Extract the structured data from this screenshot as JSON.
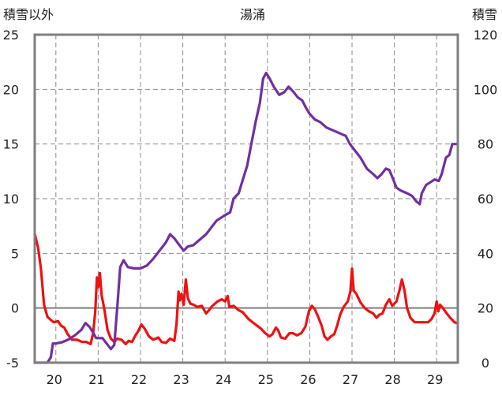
{
  "chart_data": {
    "type": "line",
    "title": "湯涌",
    "y_left_label": "積雪以外",
    "y_right_label": "積雪",
    "x_ticks": [
      "20",
      "21",
      "22",
      "23",
      "24",
      "25",
      "26",
      "27",
      "28",
      "29"
    ],
    "x_range": [
      19.5,
      29.5
    ],
    "y_left": {
      "ticks": [
        "-5",
        "0",
        "5",
        "10",
        "15",
        "20",
        "25"
      ],
      "range": [
        -5,
        25
      ]
    },
    "y_right": {
      "ticks": [
        "0",
        "20",
        "40",
        "60",
        "80",
        "100",
        "120"
      ],
      "range": [
        0,
        120
      ]
    },
    "grid": "dashed vertical at each tick, dashed horizontal at each left tick, solid line at 0",
    "series": [
      {
        "color": "#ee1111",
        "axis": "left",
        "points": [
          [
            19.5,
            6.8
          ],
          [
            19.58,
            5.5
          ],
          [
            19.65,
            3.5
          ],
          [
            19.72,
            0.3
          ],
          [
            19.8,
            -0.8
          ],
          [
            19.88,
            -1.1
          ],
          [
            19.95,
            -1.3
          ],
          [
            20.05,
            -1.2
          ],
          [
            20.12,
            -1.6
          ],
          [
            20.2,
            -1.8
          ],
          [
            20.28,
            -2.4
          ],
          [
            20.38,
            -2.9
          ],
          [
            20.5,
            -2.9
          ],
          [
            20.62,
            -3.1
          ],
          [
            20.72,
            -3.1
          ],
          [
            20.82,
            -3.3
          ],
          [
            20.88,
            -2.3
          ],
          [
            20.93,
            -0.4
          ],
          [
            20.97,
            2.8
          ],
          [
            21.0,
            1.9
          ],
          [
            21.04,
            3.2
          ],
          [
            21.08,
            1.2
          ],
          [
            21.15,
            -0.2
          ],
          [
            21.22,
            -2.0
          ],
          [
            21.3,
            -2.8
          ],
          [
            21.38,
            -3.1
          ],
          [
            21.45,
            -2.8
          ],
          [
            21.55,
            -2.9
          ],
          [
            21.65,
            -3.3
          ],
          [
            21.72,
            -3.0
          ],
          [
            21.8,
            -3.1
          ],
          [
            21.88,
            -2.5
          ],
          [
            21.95,
            -2.1
          ],
          [
            22.02,
            -1.5
          ],
          [
            22.1,
            -1.9
          ],
          [
            22.2,
            -2.6
          ],
          [
            22.3,
            -2.9
          ],
          [
            22.42,
            -2.7
          ],
          [
            22.5,
            -3.1
          ],
          [
            22.6,
            -3.2
          ],
          [
            22.7,
            -2.8
          ],
          [
            22.8,
            -3.0
          ],
          [
            22.85,
            -1.5
          ],
          [
            22.9,
            1.5
          ],
          [
            22.93,
            0.7
          ],
          [
            22.97,
            1.3
          ],
          [
            23.02,
            0.3
          ],
          [
            23.07,
            2.6
          ],
          [
            23.12,
            0.9
          ],
          [
            23.18,
            0.4
          ],
          [
            23.25,
            0.3
          ],
          [
            23.35,
            0.1
          ],
          [
            23.45,
            0.2
          ],
          [
            23.55,
            -0.5
          ],
          [
            23.62,
            -0.2
          ],
          [
            23.7,
            0.2
          ],
          [
            23.82,
            0.6
          ],
          [
            23.92,
            0.8
          ],
          [
            24.0,
            0.6
          ],
          [
            24.06,
            1.1
          ],
          [
            24.1,
            0.1
          ],
          [
            24.2,
            0.2
          ],
          [
            24.32,
            -0.2
          ],
          [
            24.42,
            -0.4
          ],
          [
            24.55,
            -1.0
          ],
          [
            24.65,
            -1.3
          ],
          [
            24.75,
            -1.6
          ],
          [
            24.85,
            -1.9
          ],
          [
            24.95,
            -2.3
          ],
          [
            25.05,
            -2.6
          ],
          [
            25.12,
            -2.4
          ],
          [
            25.2,
            -1.8
          ],
          [
            25.25,
            -2.0
          ],
          [
            25.32,
            -2.7
          ],
          [
            25.42,
            -2.8
          ],
          [
            25.52,
            -2.3
          ],
          [
            25.6,
            -2.3
          ],
          [
            25.7,
            -2.5
          ],
          [
            25.8,
            -2.3
          ],
          [
            25.9,
            -1.7
          ],
          [
            25.98,
            -0.3
          ],
          [
            26.05,
            0.2
          ],
          [
            26.12,
            -0.1
          ],
          [
            26.2,
            -0.8
          ],
          [
            26.28,
            -1.6
          ],
          [
            26.35,
            -2.6
          ],
          [
            26.42,
            -2.9
          ],
          [
            26.5,
            -2.6
          ],
          [
            26.58,
            -2.4
          ],
          [
            26.65,
            -1.6
          ],
          [
            26.72,
            -0.6
          ],
          [
            26.8,
            0.1
          ],
          [
            26.9,
            0.6
          ],
          [
            26.96,
            1.5
          ],
          [
            27.0,
            3.6
          ],
          [
            27.04,
            1.6
          ],
          [
            27.1,
            1.3
          ],
          [
            27.2,
            0.5
          ],
          [
            27.3,
            0.0
          ],
          [
            27.4,
            -0.3
          ],
          [
            27.5,
            -0.5
          ],
          [
            27.58,
            -0.9
          ],
          [
            27.65,
            -0.6
          ],
          [
            27.72,
            -0.5
          ],
          [
            27.8,
            0.3
          ],
          [
            27.88,
            0.8
          ],
          [
            27.95,
            0.2
          ],
          [
            28.05,
            0.6
          ],
          [
            28.12,
            1.6
          ],
          [
            28.18,
            2.6
          ],
          [
            28.24,
            1.6
          ],
          [
            28.3,
            0.0
          ],
          [
            28.38,
            -0.9
          ],
          [
            28.48,
            -1.3
          ],
          [
            28.58,
            -1.3
          ],
          [
            28.7,
            -1.3
          ],
          [
            28.8,
            -1.3
          ],
          [
            28.88,
            -1.0
          ],
          [
            28.95,
            -0.5
          ],
          [
            29.0,
            0.6
          ],
          [
            29.04,
            -0.3
          ],
          [
            29.08,
            0.3
          ],
          [
            29.15,
            0.0
          ],
          [
            29.22,
            -0.4
          ],
          [
            29.32,
            -0.9
          ],
          [
            29.42,
            -1.3
          ],
          [
            29.5,
            -1.4
          ]
        ]
      },
      {
        "color": "#7030a0",
        "axis": "right",
        "points": [
          [
            19.5,
            0.0
          ],
          [
            19.7,
            0.0
          ],
          [
            19.8,
            0.0
          ],
          [
            19.88,
            2.0
          ],
          [
            19.93,
            7.0
          ],
          [
            20.0,
            7.0
          ],
          [
            20.15,
            7.5
          ],
          [
            20.3,
            8.5
          ],
          [
            20.45,
            10.0
          ],
          [
            20.6,
            12.0
          ],
          [
            20.7,
            14.5
          ],
          [
            20.8,
            13.0
          ],
          [
            20.88,
            11.0
          ],
          [
            20.95,
            9.0
          ],
          [
            21.1,
            9.0
          ],
          [
            21.2,
            7.0
          ],
          [
            21.3,
            5.0
          ],
          [
            21.38,
            6.5
          ],
          [
            21.45,
            20.0
          ],
          [
            21.52,
            35.0
          ],
          [
            21.6,
            37.5
          ],
          [
            21.7,
            35.0
          ],
          [
            21.85,
            34.5
          ],
          [
            22.0,
            34.5
          ],
          [
            22.15,
            35.5
          ],
          [
            22.3,
            38.0
          ],
          [
            22.45,
            41.0
          ],
          [
            22.6,
            44.0
          ],
          [
            22.7,
            47.0
          ],
          [
            22.8,
            45.5
          ],
          [
            22.92,
            43.0
          ],
          [
            23.02,
            41.0
          ],
          [
            23.12,
            42.5
          ],
          [
            23.25,
            43.0
          ],
          [
            23.4,
            45.0
          ],
          [
            23.55,
            47.0
          ],
          [
            23.7,
            50.0
          ],
          [
            23.8,
            52.0
          ],
          [
            23.9,
            53.0
          ],
          [
            24.0,
            54.0
          ],
          [
            24.12,
            55.0
          ],
          [
            24.2,
            60.0
          ],
          [
            24.32,
            62.0
          ],
          [
            24.42,
            67.0
          ],
          [
            24.52,
            72.0
          ],
          [
            24.62,
            80.0
          ],
          [
            24.72,
            88.0
          ],
          [
            24.82,
            95.0
          ],
          [
            24.9,
            104.0
          ],
          [
            24.97,
            106.0
          ],
          [
            25.05,
            104.0
          ],
          [
            25.15,
            101.0
          ],
          [
            25.28,
            98.0
          ],
          [
            25.4,
            99.0
          ],
          [
            25.5,
            101.0
          ],
          [
            25.62,
            99.0
          ],
          [
            25.72,
            97.0
          ],
          [
            25.82,
            96.0
          ],
          [
            25.92,
            93.0
          ],
          [
            26.0,
            91.0
          ],
          [
            26.12,
            89.0
          ],
          [
            26.25,
            88.0
          ],
          [
            26.4,
            86.0
          ],
          [
            26.55,
            85.0
          ],
          [
            26.7,
            84.0
          ],
          [
            26.85,
            83.0
          ],
          [
            26.95,
            80.0
          ],
          [
            27.05,
            78.0
          ],
          [
            27.2,
            75.0
          ],
          [
            27.35,
            71.0
          ],
          [
            27.5,
            69.0
          ],
          [
            27.6,
            67.5
          ],
          [
            27.7,
            69.0
          ],
          [
            27.8,
            71.0
          ],
          [
            27.88,
            70.5
          ],
          [
            27.95,
            68.0
          ],
          [
            28.05,
            64.0
          ],
          [
            28.15,
            63.0
          ],
          [
            28.3,
            62.0
          ],
          [
            28.42,
            61.0
          ],
          [
            28.52,
            59.0
          ],
          [
            28.6,
            58.0
          ],
          [
            28.65,
            62.0
          ],
          [
            28.75,
            65.0
          ],
          [
            28.85,
            66.0
          ],
          [
            28.95,
            67.0
          ],
          [
            29.05,
            66.5
          ],
          [
            29.12,
            69.0
          ],
          [
            29.22,
            75.0
          ],
          [
            29.3,
            76.0
          ],
          [
            29.37,
            80.0
          ],
          [
            29.45,
            80.0
          ],
          [
            29.5,
            80.0
          ]
        ]
      }
    ]
  }
}
